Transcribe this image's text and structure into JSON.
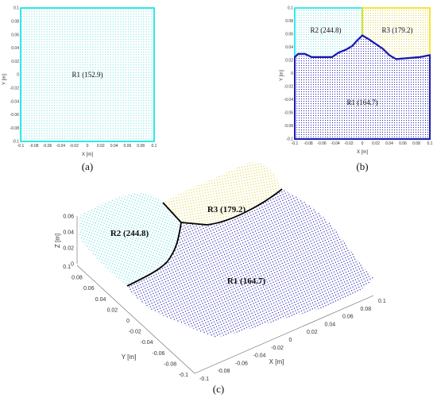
{
  "colors": {
    "cyan": "#00e5e5",
    "yellow": "#f2e100",
    "blue": "#1a1ab0",
    "boundary": "#000000",
    "grid_cyan": "#7fe7ea",
    "grid_yellow": "#e8dc3c",
    "grid_blue": "#2a2ab8"
  },
  "panel_labels": {
    "a": "(a)",
    "b": "(b)",
    "c": "(c)"
  },
  "chart_data": [
    {
      "type": "scatter",
      "panel": "a",
      "xlabel": "X [m]",
      "ylabel": "Y [m]",
      "xlim": [
        -0.1,
        0.1
      ],
      "ylim": [
        -0.1,
        0.1
      ],
      "xticks": [
        "-0.1",
        "-0.08",
        "-0.06",
        "-0.04",
        "-0.02",
        "0",
        "0.02",
        "0.04",
        "0.06",
        "0.08",
        "0.1"
      ],
      "yticks": [
        "0.1",
        "0.08",
        "0.06",
        "0.04",
        "0.02",
        "0",
        "-0.02",
        "-0.04",
        "-0.06",
        "-0.08",
        "-0.1"
      ],
      "regions": [
        {
          "name": "R1 (152.9)",
          "color": "#00e5e5",
          "value": 152.9
        }
      ]
    },
    {
      "type": "scatter",
      "panel": "b",
      "xlabel": "X [m]",
      "ylabel": "Y [m]",
      "xlim": [
        -0.1,
        0.1
      ],
      "ylim": [
        -0.1,
        0.1
      ],
      "xticks": [
        "-0.1",
        "-0.08",
        "-0.06",
        "-0.04",
        "-0.02",
        "0",
        "0.02",
        "0.04",
        "0.06",
        "0.08",
        "0.1"
      ],
      "yticks": [
        "0.1",
        "0.08",
        "0.06",
        "0.04",
        "0.02",
        "0",
        "-0.02",
        "-0.04",
        "-0.06",
        "-0.08",
        "-0.1"
      ],
      "regions": [
        {
          "name": "R2 (244.8)",
          "color": "#00e5e5",
          "value": 244.8
        },
        {
          "name": "R3 (179.2)",
          "color": "#f2e100",
          "value": 179.2
        },
        {
          "name": "R1 (164.7)",
          "color": "#1a1ab0",
          "value": 164.7
        }
      ],
      "boundary": [
        [
          -0.1,
          0.025
        ],
        [
          -0.095,
          0.03
        ],
        [
          -0.085,
          0.03
        ],
        [
          -0.075,
          0.025
        ],
        [
          -0.045,
          0.025
        ],
        [
          -0.035,
          0.032
        ],
        [
          -0.025,
          0.036
        ],
        [
          -0.015,
          0.042
        ],
        [
          -0.008,
          0.05
        ],
        [
          0,
          0.058
        ],
        [
          0.01,
          0.052
        ],
        [
          0.02,
          0.045
        ],
        [
          0.03,
          0.038
        ],
        [
          0.04,
          0.028
        ],
        [
          0.05,
          0.022
        ],
        [
          0.085,
          0.025
        ],
        [
          0.1,
          0.028
        ]
      ],
      "divider_x": 0.0
    },
    {
      "type": "scatter",
      "panel": "c",
      "xlabel": "X [m]",
      "ylabel": "Y [m]",
      "zlabel": "Z [m]",
      "xticks": [
        "-0.1",
        "-0.08",
        "-0.06",
        "-0.04",
        "-0.02",
        "0",
        "0.02",
        "0.04",
        "0.06",
        "0.08",
        "0.1"
      ],
      "yticks": [
        "0.1",
        "0.08",
        "0.06",
        "0.04",
        "0.02",
        "0",
        "-0.02",
        "-0.04",
        "-0.06",
        "-0.08",
        "-0.1"
      ],
      "zticks": [
        "0.06",
        "0.04",
        "0.02",
        "0"
      ],
      "regions": [
        {
          "name": "R2 (244.8)",
          "color": "#00e5e5",
          "value": 244.8
        },
        {
          "name": "R3 (179.2)",
          "color": "#f2e100",
          "value": 179.2
        },
        {
          "name": "R1 (164.7)",
          "color": "#1a1ab0",
          "value": 164.7
        }
      ]
    }
  ]
}
